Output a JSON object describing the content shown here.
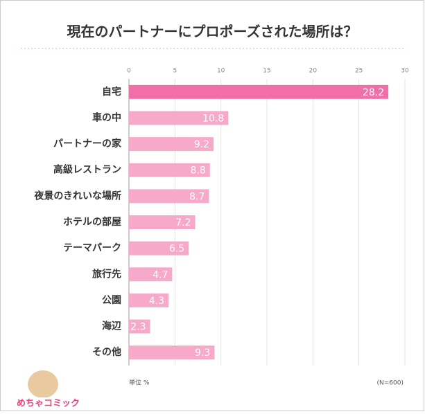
{
  "chart_data": {
    "type": "hbar",
    "title": "現在のパートナーにプロポーズされた場所は？",
    "categories": [
      "自宅",
      "車の中",
      "パートナーの家",
      "高級レストラン",
      "夜景のきれいな場所",
      "ホテルの部屋",
      "テーマパーク",
      "旅行先",
      "公園",
      "海辺",
      "その他"
    ],
    "values": [
      28.2,
      10.8,
      9.2,
      8.8,
      8.7,
      7.2,
      6.5,
      4.7,
      4.3,
      2.3,
      9.3
    ],
    "colors": [
      "#f06fa8",
      "#f7a9c9",
      "#f7a9c9",
      "#f7a9c9",
      "#f7a9c9",
      "#f7a9c9",
      "#f7a9c9",
      "#f7a9c9",
      "#f7a9c9",
      "#f7a9c9",
      "#f7a9c9"
    ],
    "xlim": [
      0,
      30
    ],
    "xticks": [
      0,
      5,
      10,
      15,
      20,
      25,
      30
    ],
    "grid": true,
    "unit_note": "単位 %",
    "sample_note": "(N=600)"
  },
  "brand": "めちゃコミック"
}
